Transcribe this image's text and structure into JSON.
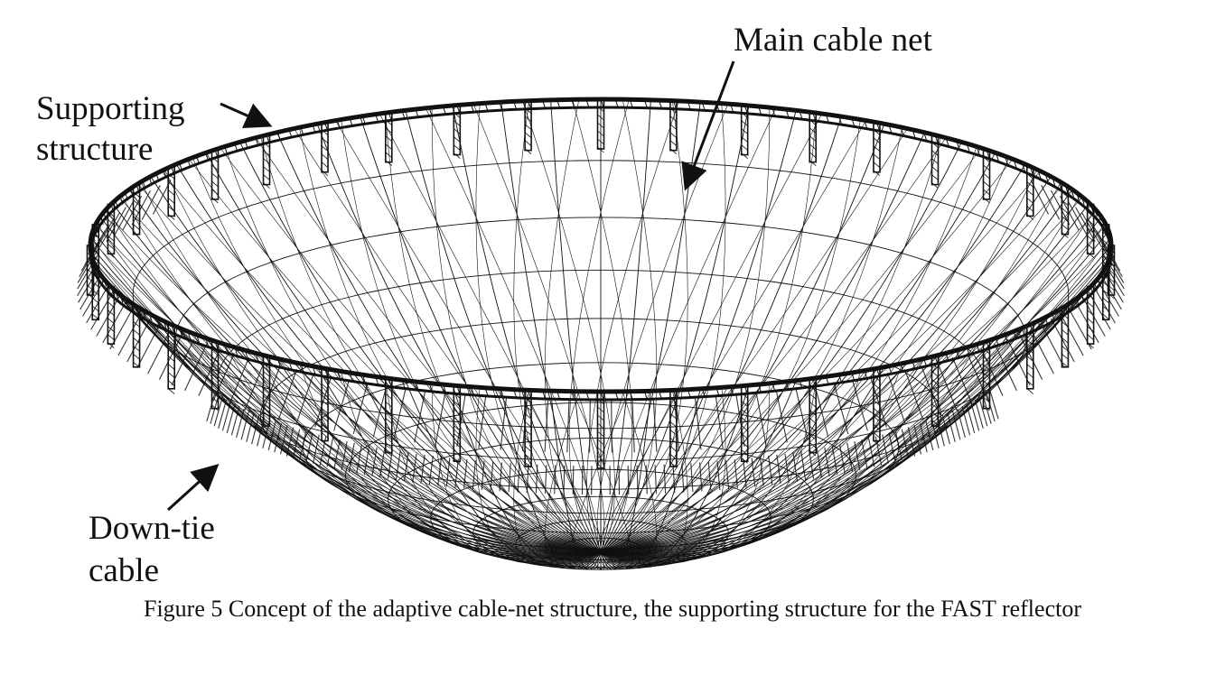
{
  "labels": {
    "main_cable_net": "Main cable net",
    "supporting_line1": "Supporting",
    "supporting_line2": "structure",
    "downtie_line1": "Down-tie",
    "downtie_line2": "cable"
  },
  "caption": "Figure 5 Concept of the adaptive cable-net structure, the supporting structure for the FAST reflector",
  "colors": {
    "ink": "#111111",
    "background": "#ffffff"
  }
}
